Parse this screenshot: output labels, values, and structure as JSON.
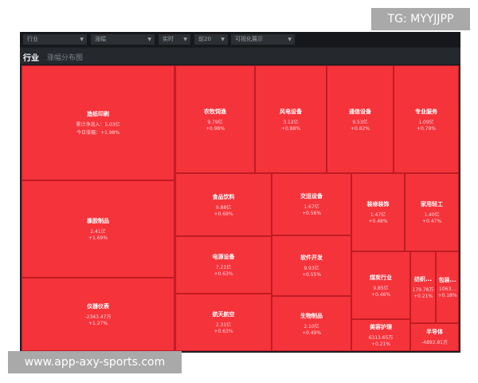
{
  "watermarks": {
    "top": "TG: MYYJJPP",
    "bottom": "www.app-axy-sports.com"
  },
  "toolbar": {
    "selects": [
      {
        "value": "行业"
      },
      {
        "value": "涨幅"
      },
      {
        "value": "实时"
      },
      {
        "value": "前20"
      },
      {
        "value": "可视化展示"
      }
    ]
  },
  "tabs": {
    "active": "行业",
    "other": "涨幅分布图"
  },
  "colors": {
    "up": "#f5333b",
    "background": "#1e2024"
  },
  "cells": [
    {
      "name": "造纸印刷",
      "value": "累计净流入：5.03亿",
      "change": "今日涨幅：+1.98%"
    },
    {
      "name": "橡胶制品",
      "value": "2.41亿",
      "change": "+1.69%"
    },
    {
      "name": "仪器仪表",
      "value": "-2343.47万",
      "change": "+1.27%"
    },
    {
      "name": "农牧饲渔",
      "value": "9.79亿",
      "change": "+0.98%"
    },
    {
      "name": "风电设备",
      "value": "3.12亿",
      "change": "+0.88%"
    },
    {
      "name": "通信设备",
      "value": "9.53亿",
      "change": "+0.82%"
    },
    {
      "name": "专业服务",
      "value": "1.09亿",
      "change": "+0.79%"
    },
    {
      "name": "食品饮料",
      "value": "9.88亿",
      "change": "+0.69%"
    },
    {
      "name": "电源设备",
      "value": "7.21亿",
      "change": "+0.63%"
    },
    {
      "name": "航天航空",
      "value": "2.31亿",
      "change": "+0.63%"
    },
    {
      "name": "交运设备",
      "value": "1.67亿",
      "change": "+0.56%"
    },
    {
      "name": "软件开发",
      "value": "9.93亿",
      "change": "+0.55%"
    },
    {
      "name": "生物制品",
      "value": "2.10亿",
      "change": "+0.49%"
    },
    {
      "name": "装修装饰",
      "value": "1.47亿",
      "change": "+0.48%"
    },
    {
      "name": "家用轻工",
      "value": "1.40亿",
      "change": "+0.47%"
    },
    {
      "name": "煤炭行业",
      "value": "9.85亿",
      "change": "+0.46%"
    },
    {
      "name": "纺织...",
      "value": "179.78万",
      "change": "+0.21%"
    },
    {
      "name": "包装...",
      "value": "1063...",
      "change": "+0.18%"
    },
    {
      "name": "美容护理",
      "value": "6313.65万",
      "change": "+0.21%"
    },
    {
      "name": "半导体",
      "value": "-4892.81万",
      "change": ""
    }
  ]
}
